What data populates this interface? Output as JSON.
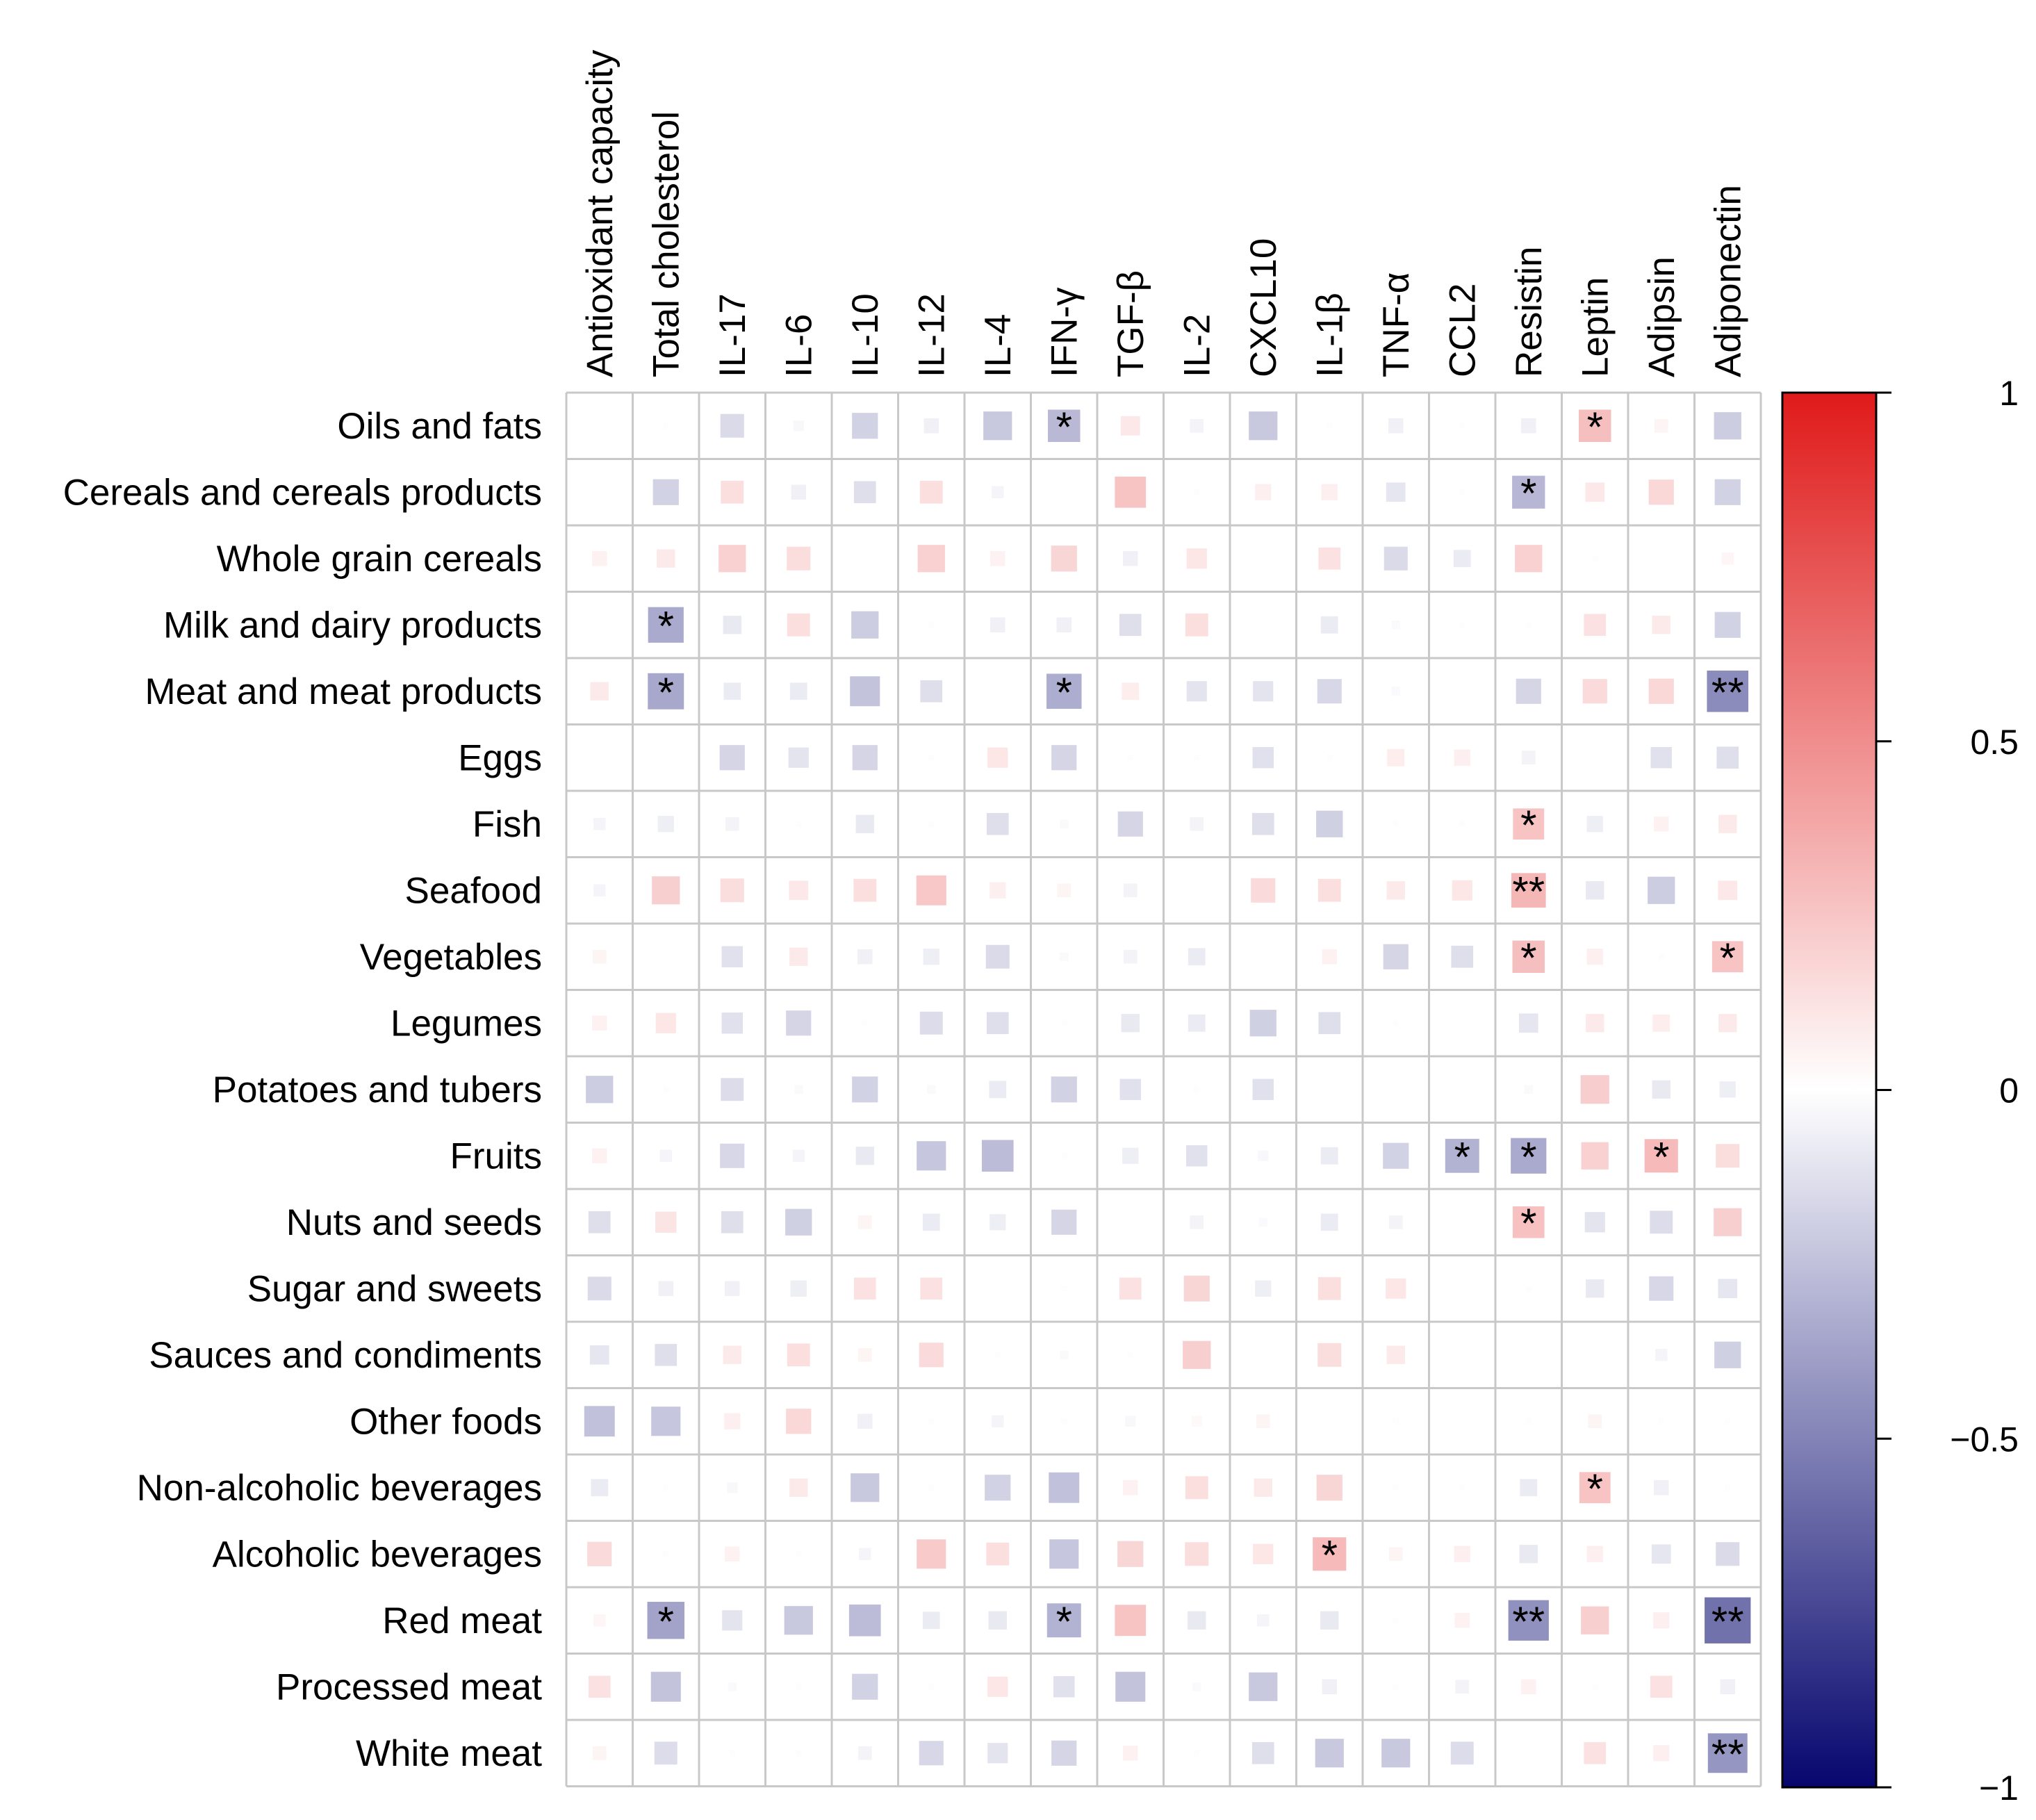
{
  "chart_data": {
    "type": "heatmap",
    "title": "",
    "rows": [
      "Oils and fats",
      "Cereals and cereals products",
      "Whole grain cereals",
      "Milk and dairy products",
      "Meat and meat products",
      "Eggs",
      "Fish",
      "Seafood",
      "Vegetables",
      "Legumes",
      "Potatoes and tubers",
      "Fruits",
      "Nuts and seeds",
      "Sugar and sweets",
      "Sauces and condiments",
      "Other foods",
      "Non-alcoholic beverages",
      "Alcoholic beverages",
      "Red meat",
      "Processed meat",
      "White meat"
    ],
    "columns": [
      "Antioxidant capacity",
      "Total cholesterol",
      "IL-17",
      "IL-6",
      "IL-10",
      "IL-12",
      "IL-4",
      "IFN-γ",
      "TGF-β",
      "IL-2",
      "CXCL10",
      "IL-1β",
      "TNF-α",
      "CCL2",
      "Resistin",
      "Leptin",
      "Adipsin",
      "Adiponectin"
    ],
    "values": [
      [
        0,
        -0.01,
        -0.15,
        -0.03,
        -0.18,
        -0.06,
        -0.22,
        -0.28,
        0.1,
        -0.05,
        -0.22,
        -0.01,
        -0.06,
        -0.01,
        -0.06,
        0.28,
        0.05,
        -0.2
      ],
      [
        0,
        -0.18,
        0.14,
        -0.06,
        -0.13,
        0.14,
        -0.04,
        0,
        0.26,
        -0.01,
        0.07,
        0.07,
        -0.1,
        -0.01,
        -0.29,
        0.1,
        0.17,
        -0.18
      ],
      [
        0.06,
        0.09,
        0.2,
        0.15,
        0,
        0.2,
        0.06,
        0.18,
        -0.06,
        0.11,
        0,
        0.13,
        -0.15,
        -0.08,
        0.2,
        -0.01,
        0,
        0.04
      ],
      [
        0,
        -0.34,
        -0.09,
        0.14,
        -0.2,
        -0.01,
        -0.06,
        -0.06,
        -0.13,
        0.14,
        0,
        -0.08,
        -0.02,
        -0.01,
        -0.01,
        0.13,
        0.09,
        -0.18
      ],
      [
        0.09,
        -0.35,
        -0.08,
        -0.08,
        -0.24,
        -0.13,
        0,
        -0.33,
        0.08,
        -0.11,
        -0.11,
        -0.16,
        -0.02,
        0,
        -0.17,
        0.16,
        0.17,
        -0.46
      ],
      [
        0,
        0,
        -0.17,
        -0.11,
        -0.17,
        -0.01,
        0.11,
        -0.17,
        -0.01,
        -0.01,
        -0.12,
        -0.01,
        0.08,
        0.07,
        -0.05,
        0,
        -0.12,
        -0.13
      ],
      [
        -0.04,
        -0.07,
        -0.05,
        -0.01,
        -0.09,
        -0.01,
        -0.13,
        -0.02,
        -0.17,
        -0.05,
        -0.13,
        -0.19,
        -0.01,
        -0.01,
        0.26,
        -0.07,
        0.06,
        0.09
      ],
      [
        -0.04,
        0.21,
        0.15,
        0.1,
        0.14,
        0.24,
        0.07,
        0.05,
        -0.05,
        0,
        0.16,
        0.14,
        0.09,
        0.11,
        0.32,
        -0.09,
        -0.2,
        0.1
      ],
      [
        0.05,
        0,
        -0.12,
        0.09,
        -0.06,
        -0.07,
        -0.15,
        -0.02,
        -0.05,
        -0.08,
        0,
        0.06,
        -0.17,
        -0.13,
        0.28,
        0.07,
        -0.01,
        0.26
      ],
      [
        0.06,
        0.11,
        -0.12,
        -0.17,
        -0.01,
        -0.14,
        -0.13,
        -0.01,
        -0.09,
        -0.08,
        -0.19,
        -0.13,
        -0.01,
        0,
        -0.1,
        0.09,
        0.08,
        0.09
      ],
      [
        -0.2,
        -0.01,
        -0.14,
        -0.02,
        -0.18,
        -0.02,
        -0.08,
        -0.18,
        -0.12,
        -0.01,
        -0.12,
        0,
        0,
        0,
        -0.02,
        0.22,
        -0.09,
        -0.07
      ],
      [
        0.06,
        -0.04,
        -0.16,
        -0.04,
        -0.09,
        -0.23,
        -0.27,
        -0.01,
        -0.07,
        -0.12,
        -0.03,
        -0.08,
        -0.18,
        -0.31,
        -0.34,
        0.2,
        0.3,
        0.15
      ],
      [
        -0.13,
        0.12,
        -0.13,
        -0.19,
        0.05,
        -0.08,
        -0.07,
        -0.17,
        0,
        -0.05,
        -0.02,
        -0.08,
        -0.05,
        0,
        0.27,
        -0.11,
        -0.14,
        0.21
      ],
      [
        -0.15,
        -0.06,
        -0.06,
        -0.07,
        0.13,
        0.13,
        0,
        -0.01,
        0.13,
        0.18,
        -0.07,
        0.14,
        0.11,
        0,
        -0.01,
        -0.09,
        -0.16,
        -0.1
      ],
      [
        -0.1,
        -0.13,
        0.09,
        0.14,
        0.05,
        0.16,
        -0.01,
        -0.02,
        -0.01,
        0.21,
        0,
        0.15,
        0.09,
        0,
        0,
        0,
        -0.04,
        -0.19
      ],
      [
        -0.25,
        -0.23,
        0.07,
        0.17,
        -0.06,
        -0.01,
        -0.04,
        -0.01,
        -0.03,
        0.03,
        0.05,
        0,
        -0.01,
        0,
        -0.01,
        0.05,
        -0.01,
        -0.01
      ],
      [
        -0.08,
        -0.01,
        -0.03,
        0.09,
        -0.22,
        -0.01,
        -0.18,
        -0.25,
        0.06,
        0.14,
        0.09,
        0.18,
        -0.01,
        -0.01,
        -0.08,
        0.26,
        -0.06,
        -0.01
      ],
      [
        0.16,
        -0.01,
        0.06,
        -0.01,
        -0.04,
        0.23,
        0.14,
        -0.23,
        0.18,
        0.15,
        0.11,
        0.3,
        0.05,
        0.07,
        -0.09,
        0.07,
        -0.1,
        -0.15
      ],
      [
        0.04,
        -0.37,
        -0.11,
        -0.22,
        -0.27,
        -0.08,
        -0.09,
        -0.31,
        0.26,
        -0.09,
        -0.04,
        -0.09,
        -0.01,
        0.06,
        -0.44,
        0.21,
        0.07,
        -0.57
      ],
      [
        0.13,
        -0.24,
        -0.02,
        -0.01,
        -0.18,
        -0.01,
        0.11,
        -0.12,
        -0.24,
        -0.02,
        -0.22,
        -0.06,
        -0.01,
        -0.05,
        0.06,
        -0.01,
        0.13,
        -0.06
      ],
      [
        0.05,
        -0.14,
        -0.01,
        -0.01,
        -0.05,
        -0.16,
        -0.11,
        -0.17,
        0.06,
        -0.01,
        -0.13,
        -0.22,
        -0.22,
        -0.14,
        0,
        0.13,
        0.07,
        -0.42
      ]
    ],
    "significance": [
      [
        "",
        "",
        "",
        "",
        "",
        "",
        "",
        "*",
        "",
        "",
        "",
        "",
        "",
        "",
        "",
        "*",
        "",
        ""
      ],
      [
        "",
        "",
        "",
        "",
        "",
        "",
        "",
        "",
        "",
        "",
        "",
        "",
        "",
        "",
        "*",
        "",
        "",
        ""
      ],
      [
        "",
        "",
        "",
        "",
        "",
        "",
        "",
        "",
        "",
        "",
        "",
        "",
        "",
        "",
        "",
        "",
        "",
        ""
      ],
      [
        "",
        "*",
        "",
        "",
        "",
        "",
        "",
        "",
        "",
        "",
        "",
        "",
        "",
        "",
        "",
        "",
        "",
        ""
      ],
      [
        "",
        "*",
        "",
        "",
        "",
        "",
        "",
        "*",
        "",
        "",
        "",
        "",
        "",
        "",
        "",
        "",
        "",
        "**"
      ],
      [
        "",
        "",
        "",
        "",
        "",
        "",
        "",
        "",
        "",
        "",
        "",
        "",
        "",
        "",
        "",
        "",
        "",
        ""
      ],
      [
        "",
        "",
        "",
        "",
        "",
        "",
        "",
        "",
        "",
        "",
        "",
        "",
        "",
        "",
        "*",
        "",
        "",
        ""
      ],
      [
        "",
        "",
        "",
        "",
        "",
        "",
        "",
        "",
        "",
        "",
        "",
        "",
        "",
        "",
        "**",
        "",
        "",
        ""
      ],
      [
        "",
        "",
        "",
        "",
        "",
        "",
        "",
        "",
        "",
        "",
        "",
        "",
        "",
        "",
        "*",
        "",
        "",
        "*"
      ],
      [
        "",
        "",
        "",
        "",
        "",
        "",
        "",
        "",
        "",
        "",
        "",
        "",
        "",
        "",
        "",
        "",
        "",
        ""
      ],
      [
        "",
        "",
        "",
        "",
        "",
        "",
        "",
        "",
        "",
        "",
        "",
        "",
        "",
        "",
        "",
        "",
        "",
        ""
      ],
      [
        "",
        "",
        "",
        "",
        "",
        "",
        "",
        "",
        "",
        "",
        "",
        "",
        "",
        "*",
        "*",
        "",
        "*",
        ""
      ],
      [
        "",
        "",
        "",
        "",
        "",
        "",
        "",
        "",
        "",
        "",
        "",
        "",
        "",
        "",
        "*",
        "",
        "",
        ""
      ],
      [
        "",
        "",
        "",
        "",
        "",
        "",
        "",
        "",
        "",
        "",
        "",
        "",
        "",
        "",
        "",
        "",
        "",
        ""
      ],
      [
        "",
        "",
        "",
        "",
        "",
        "",
        "",
        "",
        "",
        "",
        "",
        "",
        "",
        "",
        "",
        "",
        "",
        ""
      ],
      [
        "",
        "",
        "",
        "",
        "",
        "",
        "",
        "",
        "",
        "",
        "",
        "",
        "",
        "",
        "",
        "",
        "",
        ""
      ],
      [
        "",
        "",
        "",
        "",
        "",
        "",
        "",
        "",
        "",
        "",
        "",
        "",
        "",
        "",
        "",
        "*",
        "",
        ""
      ],
      [
        "",
        "",
        "",
        "",
        "",
        "",
        "",
        "",
        "",
        "",
        "",
        "*",
        "",
        "",
        "",
        "",
        "",
        ""
      ],
      [
        "",
        "*",
        "",
        "",
        "",
        "",
        "",
        "*",
        "",
        "",
        "",
        "",
        "",
        "",
        "**",
        "",
        "",
        "**"
      ],
      [
        "",
        "",
        "",
        "",
        "",
        "",
        "",
        "",
        "",
        "",
        "",
        "",
        "",
        "",
        "",
        "",
        "",
        ""
      ],
      [
        "",
        "",
        "",
        "",
        "",
        "",
        "",
        "",
        "",
        "",
        "",
        "",
        "",
        "",
        "",
        "",
        "",
        "**"
      ]
    ],
    "colorbar": {
      "range": [
        -1,
        1
      ],
      "ticks": [
        1,
        0.5,
        0,
        -0.5,
        -1
      ],
      "tick_labels": [
        "1",
        "0.5",
        "0",
        "−0.5",
        "−1"
      ],
      "colors": {
        "low": "#06066e",
        "mid": "#ffffff",
        "high": "#e01a1a"
      }
    }
  }
}
